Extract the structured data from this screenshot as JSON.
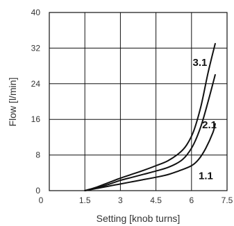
{
  "chart_data": {
    "type": "line",
    "title": "",
    "xlabel": "Setting [knob turns]",
    "ylabel": "Flow [l/min]",
    "xlim": [
      0,
      7.5
    ],
    "ylim": [
      0,
      40
    ],
    "x_ticks": [
      "0",
      "1.5",
      "3",
      "4.5",
      "6",
      "7.5"
    ],
    "y_ticks": [
      "0",
      "8",
      "16",
      "24",
      "32",
      "40"
    ],
    "grid": true,
    "series": [
      {
        "name": "1.1",
        "x": [
          1.5,
          2.0,
          2.5,
          3.0,
          3.5,
          4.0,
          4.5,
          5.0,
          5.5,
          6.0,
          6.3,
          6.6,
          6.9,
          7.0
        ],
        "y": [
          0.0,
          0.5,
          1.0,
          1.5,
          2.0,
          2.5,
          3.0,
          3.6,
          4.5,
          5.6,
          7.0,
          9.5,
          13.0,
          15.0
        ]
      },
      {
        "name": "2.1",
        "x": [
          1.5,
          2.0,
          2.5,
          3.0,
          3.5,
          4.0,
          4.5,
          5.0,
          5.5,
          5.8,
          6.1,
          6.4,
          6.7,
          7.0
        ],
        "y": [
          0.0,
          0.6,
          1.4,
          2.3,
          3.0,
          3.7,
          4.4,
          5.2,
          6.5,
          8.0,
          10.5,
          14.5,
          20.0,
          26.0
        ]
      },
      {
        "name": "3.1",
        "x": [
          1.5,
          2.0,
          2.5,
          3.0,
          3.5,
          4.0,
          4.5,
          5.0,
          5.5,
          5.8,
          6.1,
          6.4,
          6.7,
          7.0
        ],
        "y": [
          0.0,
          0.8,
          1.8,
          2.8,
          3.7,
          4.6,
          5.6,
          6.7,
          8.5,
          10.3,
          13.5,
          19.0,
          26.5,
          33.0
        ]
      }
    ],
    "series_label_positions_data": [
      {
        "name": "1.1",
        "x": 6.3,
        "y": 2.6
      },
      {
        "name": "2.1",
        "x": 6.45,
        "y": 14.0
      },
      {
        "name": "3.1",
        "x": 6.05,
        "y": 28.0
      }
    ]
  }
}
